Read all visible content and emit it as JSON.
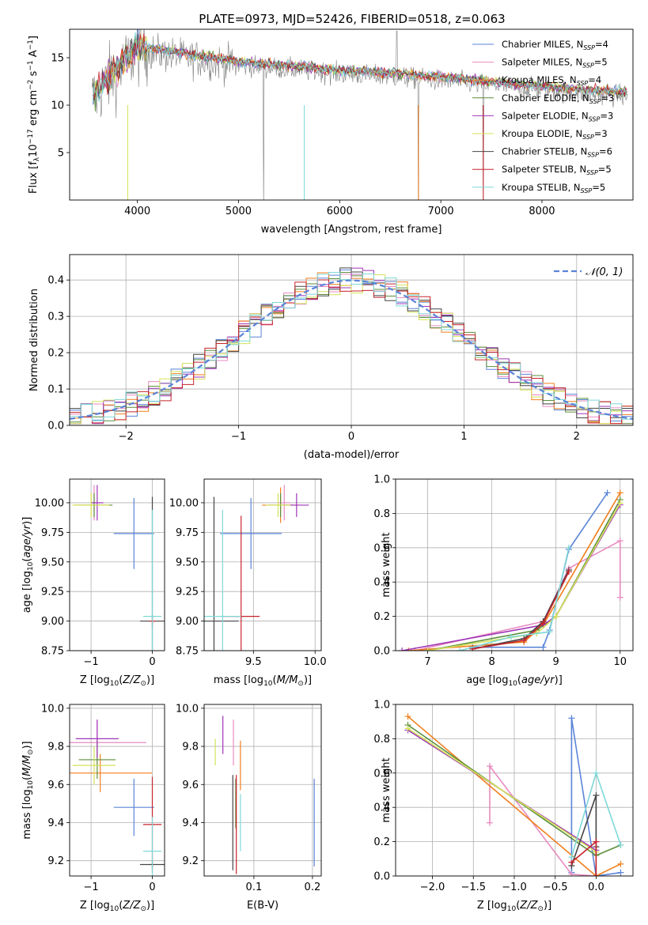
{
  "colors": {
    "Chabrier MILES": "#5b84d8",
    "Salpeter MILES": "#e88ac0",
    "Kroupa MILES": "#f07f1e",
    "Chabrier ELODIE": "#5c8e3c",
    "Salpeter ELODIE": "#9f35b8",
    "Kroupa ELODIE": "#d4e25a",
    "Chabrier STELIB": "#444444",
    "Salpeter STELIB": "#c8232b",
    "Kroupa STELIB": "#7fd8d8",
    "data": "#7f7f7f",
    "gaussian": "#5b84d8"
  },
  "chart_data": [
    {
      "id": "spectrum",
      "type": "line",
      "title": "PLATE=0973, MJD=52426, FIBERID=0518, z=0.063",
      "xlabel": "wavelength [Angstrom, rest frame]",
      "ylabel": "Flux [f",
      "ylabel_parts": [
        "Flux [f",
        "λ",
        "10",
        "−17",
        " erg cm",
        "−2",
        " s",
        "−1",
        " A",
        "−1",
        "]"
      ],
      "xlim": [
        3330,
        8900
      ],
      "ylim": [
        0,
        18
      ],
      "xticks": [
        4000,
        5000,
        6000,
        7000,
        8000
      ],
      "yticks": [
        5,
        10,
        15
      ],
      "grid": false,
      "legend_position": "upper-right",
      "legend": [
        {
          "name": "Chabrier MILES",
          "n": "4"
        },
        {
          "name": "Salpeter MILES",
          "n": "5"
        },
        {
          "name": "Kroupa MILES",
          "n": "4"
        },
        {
          "name": "Chabrier ELODIE",
          "n": "3"
        },
        {
          "name": "Salpeter ELODIE",
          "n": "3"
        },
        {
          "name": "Kroupa ELODIE",
          "n": "3"
        },
        {
          "name": "Chabrier STELIB",
          "n": "6"
        },
        {
          "name": "Salpeter STELIB",
          "n": "5"
        },
        {
          "name": "Kroupa STELIB",
          "n": "5"
        }
      ],
      "legend_template": ", N",
      "legend_sub": "SSP",
      "continuum": [
        [
          3550,
          10.5
        ],
        [
          3700,
          12.5
        ],
        [
          3900,
          14.5
        ],
        [
          4000,
          15.8
        ],
        [
          4200,
          15.5
        ],
        [
          4500,
          15.0
        ],
        [
          5000,
          14.2
        ],
        [
          5500,
          13.8
        ],
        [
          6000,
          13.3
        ],
        [
          6500,
          13.0
        ],
        [
          7000,
          12.6
        ],
        [
          7500,
          12.1
        ],
        [
          8000,
          11.6
        ],
        [
          8500,
          11.2
        ],
        [
          8800,
          11.0
        ]
      ]
    },
    {
      "id": "residuals",
      "type": "histogram",
      "xlabel": "(data-model)/error",
      "ylabel": "Normed distribution",
      "xlim": [
        -2.5,
        2.5
      ],
      "ylim": [
        0,
        0.47
      ],
      "xticks": [
        -2,
        -1,
        0,
        1,
        2
      ],
      "yticks": [
        0.0,
        0.1,
        0.2,
        0.3,
        0.4
      ],
      "grid": true,
      "legend_position": "upper-right",
      "gaussian_label": "𝒩(0, 1)",
      "bin_width": 0.1
    },
    {
      "id": "age-vs-Z",
      "type": "scatter",
      "xlabel": "Z [log10(Z/Z⊙)]",
      "ylabel": "age  [log10(age/yr)]",
      "xlim": [
        -1.35,
        0.2
      ],
      "ylim": [
        8.75,
        10.2
      ],
      "xticks": [
        -1,
        0
      ],
      "yticks": [
        8.75,
        9.0,
        9.25,
        9.5,
        9.75,
        10.0
      ],
      "grid": true,
      "points": [
        {
          "s": "Chabrier MILES",
          "x": -0.3,
          "y": 9.74,
          "xe": 0.33,
          "ye": 0.3
        },
        {
          "s": "Salpeter MILES",
          "x": -0.95,
          "y": 10.0,
          "xe": 0.05,
          "ye": 0.15
        },
        {
          "s": "Kroupa MILES",
          "x": -1.0,
          "y": 9.98,
          "xe": 0.3,
          "ye": 0.1
        },
        {
          "s": "Chabrier ELODIE",
          "x": -0.95,
          "y": 9.98,
          "xe": 0.3,
          "ye": 0.1
        },
        {
          "s": "Salpeter ELODIE",
          "x": -0.9,
          "y": 10.0,
          "xe": 0.1,
          "ye": 0.15
        },
        {
          "s": "Kroupa ELODIE",
          "x": -1.0,
          "y": 9.98,
          "xe": 0.3,
          "ye": 0.1
        },
        {
          "s": "Chabrier STELIB",
          "x": 0.0,
          "y": 9.0,
          "xe": 0.2,
          "ye": 1.05
        },
        {
          "s": "Salpeter STELIB",
          "x": 0.0,
          "y": 9.0,
          "xe": 0.05,
          "ye": 0.05
        },
        {
          "s": "Kroupa STELIB",
          "x": 0.0,
          "y": 9.04,
          "xe": 0.15,
          "ye": 0.9
        }
      ]
    },
    {
      "id": "age-vs-mass",
      "type": "scatter",
      "xlabel": "mass [log10(M/M⊙)]",
      "ylabel": "",
      "xlim": [
        9.1,
        10.05
      ],
      "ylim": [
        8.75,
        10.2
      ],
      "xticks": [
        9.5,
        10.0
      ],
      "yticks": [
        8.75,
        9.0,
        9.25,
        9.5,
        9.75,
        10.0
      ],
      "grid": true,
      "points": [
        {
          "s": "Chabrier MILES",
          "x": 9.48,
          "y": 9.74,
          "xe": 0.25,
          "ye": 0.3
        },
        {
          "s": "Salpeter MILES",
          "x": 9.75,
          "y": 10.0,
          "xe": 0.05,
          "ye": 0.15
        },
        {
          "s": "Kroupa MILES",
          "x": 9.72,
          "y": 9.98,
          "xe": 0.15,
          "ye": 0.15
        },
        {
          "s": "Chabrier ELODIE",
          "x": 9.72,
          "y": 9.98,
          "xe": 0.1,
          "ye": 0.1
        },
        {
          "s": "Salpeter ELODIE",
          "x": 9.85,
          "y": 9.98,
          "xe": 0.1,
          "ye": 0.1
        },
        {
          "s": "Kroupa ELODIE",
          "x": 9.7,
          "y": 9.98,
          "xe": 0.1,
          "ye": 0.1
        },
        {
          "s": "Chabrier STELIB",
          "x": 9.18,
          "y": 9.0,
          "xe": 0.2,
          "ye": 1.05
        },
        {
          "s": "Salpeter STELIB",
          "x": 9.4,
          "y": 9.04,
          "xe": 0.15,
          "ye": 0.85
        },
        {
          "s": "Kroupa STELIB",
          "x": 9.25,
          "y": 9.04,
          "xe": 0.15,
          "ye": 0.9
        }
      ]
    },
    {
      "id": "weight-vs-age",
      "type": "line",
      "xlabel": "age  [log10(age/yr)]",
      "ylabel": "mass weight",
      "xlim": [
        6.5,
        10.2
      ],
      "ylim": [
        0,
        1.0
      ],
      "xticks": [
        7,
        8,
        9,
        10
      ],
      "yticks": [
        0.0,
        0.2,
        0.4,
        0.6,
        0.8,
        1.0
      ],
      "grid": true,
      "series": [
        {
          "s": "Chabrier MILES",
          "x": [
            7.7,
            8.8,
            8.9,
            9.2,
            9.8
          ],
          "y": [
            0.02,
            0.02,
            0.12,
            0.59,
            0.92
          ]
        },
        {
          "s": "Salpeter MILES",
          "x": [
            6.8,
            8.8,
            9.2,
            10.0,
            10.0
          ],
          "y": [
            0.0,
            0.17,
            0.48,
            0.64,
            0.31
          ]
        },
        {
          "s": "Kroupa MILES",
          "x": [
            6.7,
            8.5,
            8.8,
            10.0
          ],
          "y": [
            0.0,
            0.05,
            0.15,
            0.92
          ]
        },
        {
          "s": "Chabrier ELODIE",
          "x": [
            7.0,
            8.7,
            9.0,
            10.0
          ],
          "y": [
            0.0,
            0.12,
            0.2,
            0.88
          ]
        },
        {
          "s": "Salpeter ELODIE",
          "x": [
            6.6,
            8.8,
            9.0,
            10.0
          ],
          "y": [
            0.0,
            0.15,
            0.2,
            0.85
          ]
        },
        {
          "s": "Kroupa ELODIE",
          "x": [
            7.0,
            8.7,
            9.0,
            10.0
          ],
          "y": [
            0.0,
            0.1,
            0.2,
            0.86
          ]
        },
        {
          "s": "Chabrier STELIB",
          "x": [
            7.7,
            8.5,
            8.8,
            9.2
          ],
          "y": [
            0.01,
            0.07,
            0.17,
            0.47
          ]
        },
        {
          "s": "Salpeter STELIB",
          "x": [
            7.7,
            8.5,
            8.8,
            9.2
          ],
          "y": [
            0.01,
            0.06,
            0.16,
            0.46
          ]
        },
        {
          "s": "Kroupa STELIB",
          "x": [
            7.5,
            8.3,
            8.9,
            9.2
          ],
          "y": [
            0.0,
            0.08,
            0.11,
            0.6
          ]
        }
      ]
    },
    {
      "id": "mass-vs-Z",
      "type": "scatter",
      "xlabel": "Z [log10(Z/Z⊙)]",
      "ylabel": "mass [log10(M/M⊙)]",
      "xlim": [
        -1.35,
        0.2
      ],
      "ylim": [
        9.12,
        10.02
      ],
      "xticks": [
        -1,
        0
      ],
      "yticks": [
        9.2,
        9.4,
        9.6,
        9.8,
        10.0
      ],
      "grid": true,
      "points": [
        {
          "s": "Chabrier MILES",
          "x": -0.3,
          "y": 9.48,
          "xe": 0.33,
          "ye": 0.15
        },
        {
          "s": "Salpeter MILES",
          "x": -0.9,
          "y": 9.82,
          "xe": 0.8,
          "ye": 0.12
        },
        {
          "s": "Kroupa MILES",
          "x": -0.85,
          "y": 9.66,
          "xe": 0.85,
          "ye": 0.1
        },
        {
          "s": "Chabrier ELODIE",
          "x": -0.9,
          "y": 9.73,
          "xe": 0.3,
          "ye": 0.1
        },
        {
          "s": "Salpeter ELODIE",
          "x": -0.9,
          "y": 9.84,
          "xe": 0.35,
          "ye": 0.1
        },
        {
          "s": "Kroupa ELODIE",
          "x": -0.95,
          "y": 9.7,
          "xe": 0.35,
          "ye": 0.1
        },
        {
          "s": "Chabrier STELIB",
          "x": 0.0,
          "y": 9.18,
          "xe": 0.2,
          "ye": 0.02
        },
        {
          "s": "Salpeter STELIB",
          "x": 0.0,
          "y": 9.39,
          "xe": 0.15,
          "ye": 0.25
        },
        {
          "s": "Kroupa STELIB",
          "x": 0.0,
          "y": 9.25,
          "xe": 0.15,
          "ye": 0.18
        }
      ]
    },
    {
      "id": "mass-vs-EBV",
      "type": "scatter",
      "xlabel": "E(B-V)",
      "ylabel": "",
      "xlim": [
        0.015,
        0.215
      ],
      "ylim": [
        9.12,
        10.02
      ],
      "xticks": [
        0.1,
        0.2
      ],
      "yticks": [
        9.2,
        9.4,
        9.6,
        9.8,
        10.0
      ],
      "grid": true,
      "points": [
        {
          "s": "Chabrier MILES",
          "x": 0.203,
          "y": 9.4,
          "xe": 0.0,
          "ye": 0.23
        },
        {
          "s": "Salpeter MILES",
          "x": 0.065,
          "y": 9.82,
          "xe": 0.0,
          "ye": 0.12
        },
        {
          "s": "Kroupa MILES",
          "x": 0.077,
          "y": 9.7,
          "xe": 0.0,
          "ye": 0.13
        },
        {
          "s": "Chabrier ELODIE",
          "x": 0.069,
          "y": 9.5,
          "xe": 0.0,
          "ye": 0.13
        },
        {
          "s": "Salpeter ELODIE",
          "x": 0.047,
          "y": 9.86,
          "xe": 0.0,
          "ye": 0.1
        },
        {
          "s": "Kroupa ELODIE",
          "x": 0.034,
          "y": 9.77,
          "xe": 0.0,
          "ye": 0.07
        },
        {
          "s": "Chabrier STELIB",
          "x": 0.064,
          "y": 9.4,
          "xe": 0.0,
          "ye": 0.25
        },
        {
          "s": "Salpeter STELIB",
          "x": 0.07,
          "y": 9.39,
          "xe": 0.0,
          "ye": 0.26
        },
        {
          "s": "Kroupa STELIB",
          "x": 0.077,
          "y": 9.4,
          "xe": 0.0,
          "ye": 0.15
        }
      ]
    },
    {
      "id": "weight-vs-Z",
      "type": "line",
      "xlabel": "Z [log10(Z/Z⊙)]",
      "ylabel": "mass weight",
      "xlim": [
        -2.45,
        0.45
      ],
      "ylim": [
        0,
        1.0
      ],
      "xticks": [
        -2.0,
        -1.5,
        -1.0,
        -0.5,
        0.0
      ],
      "yticks": [
        0.0,
        0.2,
        0.4,
        0.6,
        0.8,
        1.0
      ],
      "grid": true,
      "series": [
        {
          "s": "Chabrier MILES",
          "x": [
            -0.3,
            -0.3,
            0.0,
            0.3
          ],
          "y": [
            0.02,
            0.92,
            0.0,
            0.02
          ]
        },
        {
          "s": "Salpeter MILES",
          "x": [
            -1.3,
            -1.3,
            -0.3,
            0.0
          ],
          "y": [
            0.31,
            0.64,
            0.01,
            0.0
          ]
        },
        {
          "s": "Kroupa MILES",
          "x": [
            -2.3,
            0.0,
            0.3
          ],
          "y": [
            0.93,
            0.0,
            0.07
          ]
        },
        {
          "s": "Chabrier ELODIE",
          "x": [
            -2.3,
            0.0,
            0.3
          ],
          "y": [
            0.88,
            0.12,
            0.18
          ]
        },
        {
          "s": "Salpeter ELODIE",
          "x": [
            -2.3,
            0.0
          ],
          "y": [
            0.85,
            0.15
          ]
        },
        {
          "s": "Kroupa ELODIE",
          "x": [
            -2.3,
            0.0
          ],
          "y": [
            0.86,
            0.14
          ]
        },
        {
          "s": "Chabrier STELIB",
          "x": [
            -0.3,
            0.0,
            0.0
          ],
          "y": [
            0.06,
            0.47,
            0.17
          ]
        },
        {
          "s": "Salpeter STELIB",
          "x": [
            -0.3,
            0.0,
            0.0
          ],
          "y": [
            0.08,
            0.2,
            0.0
          ]
        },
        {
          "s": "Kroupa STELIB",
          "x": [
            -0.3,
            0.0,
            0.3
          ],
          "y": [
            0.11,
            0.6,
            0.18
          ]
        }
      ]
    }
  ]
}
